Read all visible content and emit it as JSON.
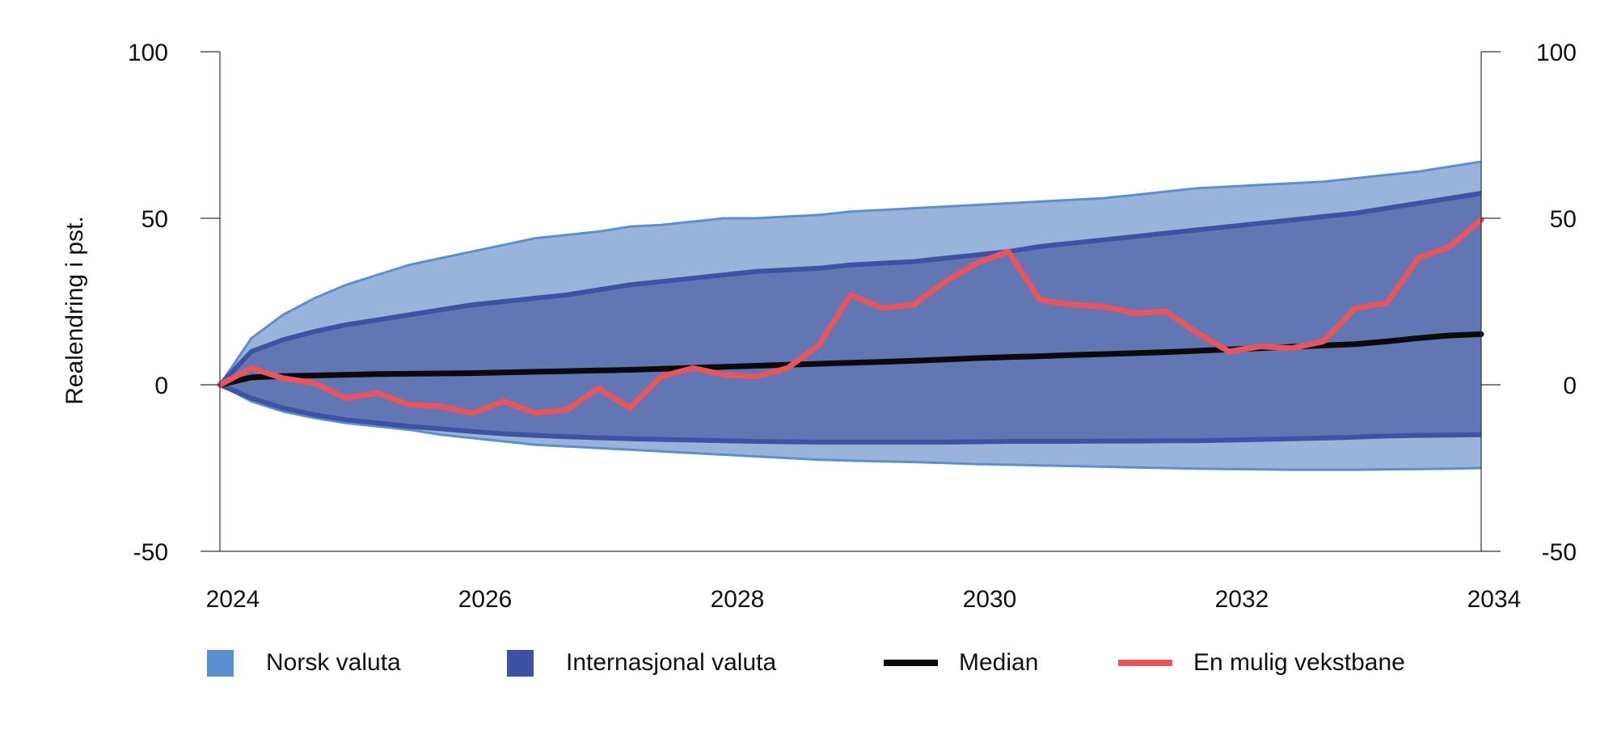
{
  "chart_data": {
    "type": "area",
    "title": "",
    "ylabel": "Realendring i pst.",
    "xlabel": "",
    "xlim": [
      2024,
      2034
    ],
    "ylim": [
      -50,
      100
    ],
    "x_ticks": [
      "2024",
      "2026",
      "2028",
      "2030",
      "2032",
      "2034"
    ],
    "y_ticks_left": [
      "100",
      "50",
      "0",
      "-50"
    ],
    "y_ticks_right": [
      "100",
      "50",
      "0",
      "-50"
    ],
    "y_tick_values": [
      100,
      50,
      0,
      -50
    ],
    "grid": false,
    "legend_position": "bottom",
    "colors": {
      "norsk": "#9ab3da",
      "norsk_edge": "#5b8fce",
      "internasjonal": "#6276b3",
      "internasjonal_edge": "#3f51a3",
      "median": "#0a0a0a",
      "path": "#e8555c"
    },
    "x": [
      2024.0,
      2024.25,
      2024.5,
      2024.75,
      2025.0,
      2025.25,
      2025.5,
      2025.75,
      2026.0,
      2026.25,
      2026.5,
      2026.75,
      2027.0,
      2027.25,
      2027.5,
      2027.75,
      2028.0,
      2028.25,
      2028.5,
      2028.75,
      2029.0,
      2029.25,
      2029.5,
      2029.75,
      2030.0,
      2030.25,
      2030.5,
      2030.75,
      2031.0,
      2031.25,
      2031.5,
      2031.75,
      2032.0,
      2032.25,
      2032.5,
      2032.75,
      2033.0,
      2033.25,
      2033.5,
      2033.75,
      2034.0
    ],
    "series": [
      {
        "name": "Norsk valuta",
        "kind": "band",
        "upper": [
          0,
          14,
          21,
          26,
          30,
          33,
          36,
          38,
          40,
          42,
          44,
          45,
          46,
          47.5,
          48,
          49,
          50,
          50,
          50.5,
          51,
          52,
          52.5,
          53,
          53.5,
          54,
          54.5,
          55,
          55.5,
          56,
          57,
          58,
          59,
          59.5,
          60,
          60.5,
          61,
          62,
          63,
          64,
          65.5,
          67
        ],
        "lower": [
          0,
          -5,
          -8,
          -10,
          -11.5,
          -12.5,
          -13.5,
          -15,
          -16,
          -17,
          -18,
          -18.5,
          -19,
          -19.5,
          -20,
          -20.5,
          -21,
          -21.5,
          -22,
          -22.5,
          -22.8,
          -23,
          -23.2,
          -23.5,
          -23.8,
          -24,
          -24.2,
          -24.4,
          -24.6,
          -24.8,
          -25,
          -25.2,
          -25.3,
          -25.4,
          -25.5,
          -25.5,
          -25.5,
          -25.4,
          -25.3,
          -25.2,
          -25
        ]
      },
      {
        "name": "Internasjonal valuta",
        "kind": "band",
        "upper": [
          0,
          10,
          13.5,
          16,
          18,
          19.5,
          21,
          22.5,
          24,
          25,
          26,
          27,
          28.5,
          30,
          31,
          32,
          33,
          34,
          34.5,
          35,
          36,
          36.5,
          37,
          38,
          39,
          40,
          41.5,
          42.5,
          43.5,
          44.5,
          45.5,
          46.5,
          47.5,
          48.5,
          49.5,
          50.5,
          51.5,
          53,
          54.5,
          56,
          57.5
        ],
        "lower": [
          0,
          -4,
          -7,
          -9,
          -10.5,
          -11.5,
          -12.5,
          -13.2,
          -14,
          -14.7,
          -15.2,
          -15.6,
          -15.9,
          -16.2,
          -16.4,
          -16.6,
          -16.8,
          -17,
          -17.1,
          -17.2,
          -17.2,
          -17.2,
          -17.2,
          -17.2,
          -17.1,
          -17,
          -17,
          -17,
          -16.9,
          -16.9,
          -16.8,
          -16.8,
          -16.6,
          -16.4,
          -16.2,
          -16,
          -15.7,
          -15.4,
          -15.2,
          -15.1,
          -15
        ]
      },
      {
        "name": "Median",
        "kind": "line",
        "values": [
          0,
          2.2,
          2.6,
          2.8,
          3,
          3.2,
          3.3,
          3.4,
          3.5,
          3.7,
          3.9,
          4.1,
          4.3,
          4.5,
          4.8,
          5.1,
          5.4,
          5.7,
          6,
          6.3,
          6.6,
          6.9,
          7.2,
          7.6,
          8,
          8.3,
          8.6,
          8.9,
          9.2,
          9.5,
          9.8,
          10.2,
          10.6,
          11,
          11.4,
          11.8,
          12.2,
          13,
          14,
          14.8,
          15.2
        ]
      },
      {
        "name": "En mulig vekstbane",
        "kind": "line",
        "values": [
          0,
          5,
          2,
          0.5,
          -4,
          -2.5,
          -6,
          -6.5,
          -8.5,
          -5,
          -8.5,
          -7.5,
          -1,
          -7,
          2.5,
          5,
          3,
          2.5,
          5,
          12,
          27,
          23,
          24,
          31,
          36.5,
          40,
          25.5,
          24,
          23.5,
          21.5,
          22,
          15.5,
          10,
          11.5,
          11,
          13,
          23,
          24.5,
          38,
          41.5,
          49.5
        ]
      }
    ]
  },
  "legend": [
    {
      "label": "Norsk valuta",
      "kind": "box",
      "color": "#5b8fce"
    },
    {
      "label": "Internasjonal valuta",
      "kind": "box",
      "color": "#3f51a3"
    },
    {
      "label": "Median",
      "kind": "line",
      "color": "#0a0a0a"
    },
    {
      "label": "En mulig vekstbane",
      "kind": "line",
      "color": "#e8555c"
    }
  ]
}
